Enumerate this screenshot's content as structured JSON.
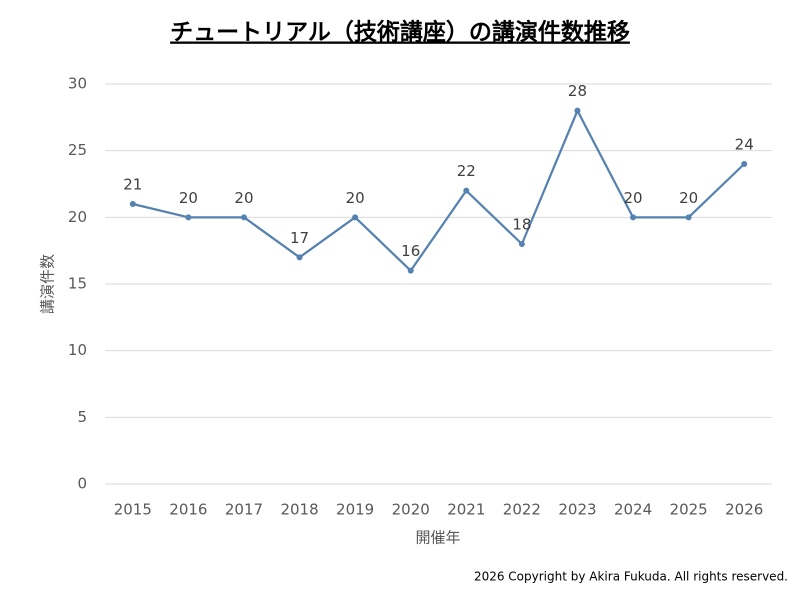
{
  "chart_data": {
    "type": "line",
    "title": "チュートリアル（技術講座）の講演件数推移",
    "x_label": "開催年",
    "y_label": "講演件数",
    "categories": [
      "2015",
      "2016",
      "2017",
      "2018",
      "2019",
      "2020",
      "2021",
      "2022",
      "2023",
      "2024",
      "2025",
      "2026"
    ],
    "series": [
      {
        "name": "講演件数",
        "color": "#5582b0",
        "values": [
          21,
          20,
          20,
          17,
          20,
          16,
          22,
          18,
          28,
          20,
          20,
          24
        ]
      }
    ],
    "ylim": [
      0,
      30
    ],
    "yticks": [
      0,
      5,
      10,
      15,
      20,
      25,
      30
    ],
    "grid": true,
    "footer": "2026 Copyright by Akira Fukuda.  All rights reserved."
  }
}
